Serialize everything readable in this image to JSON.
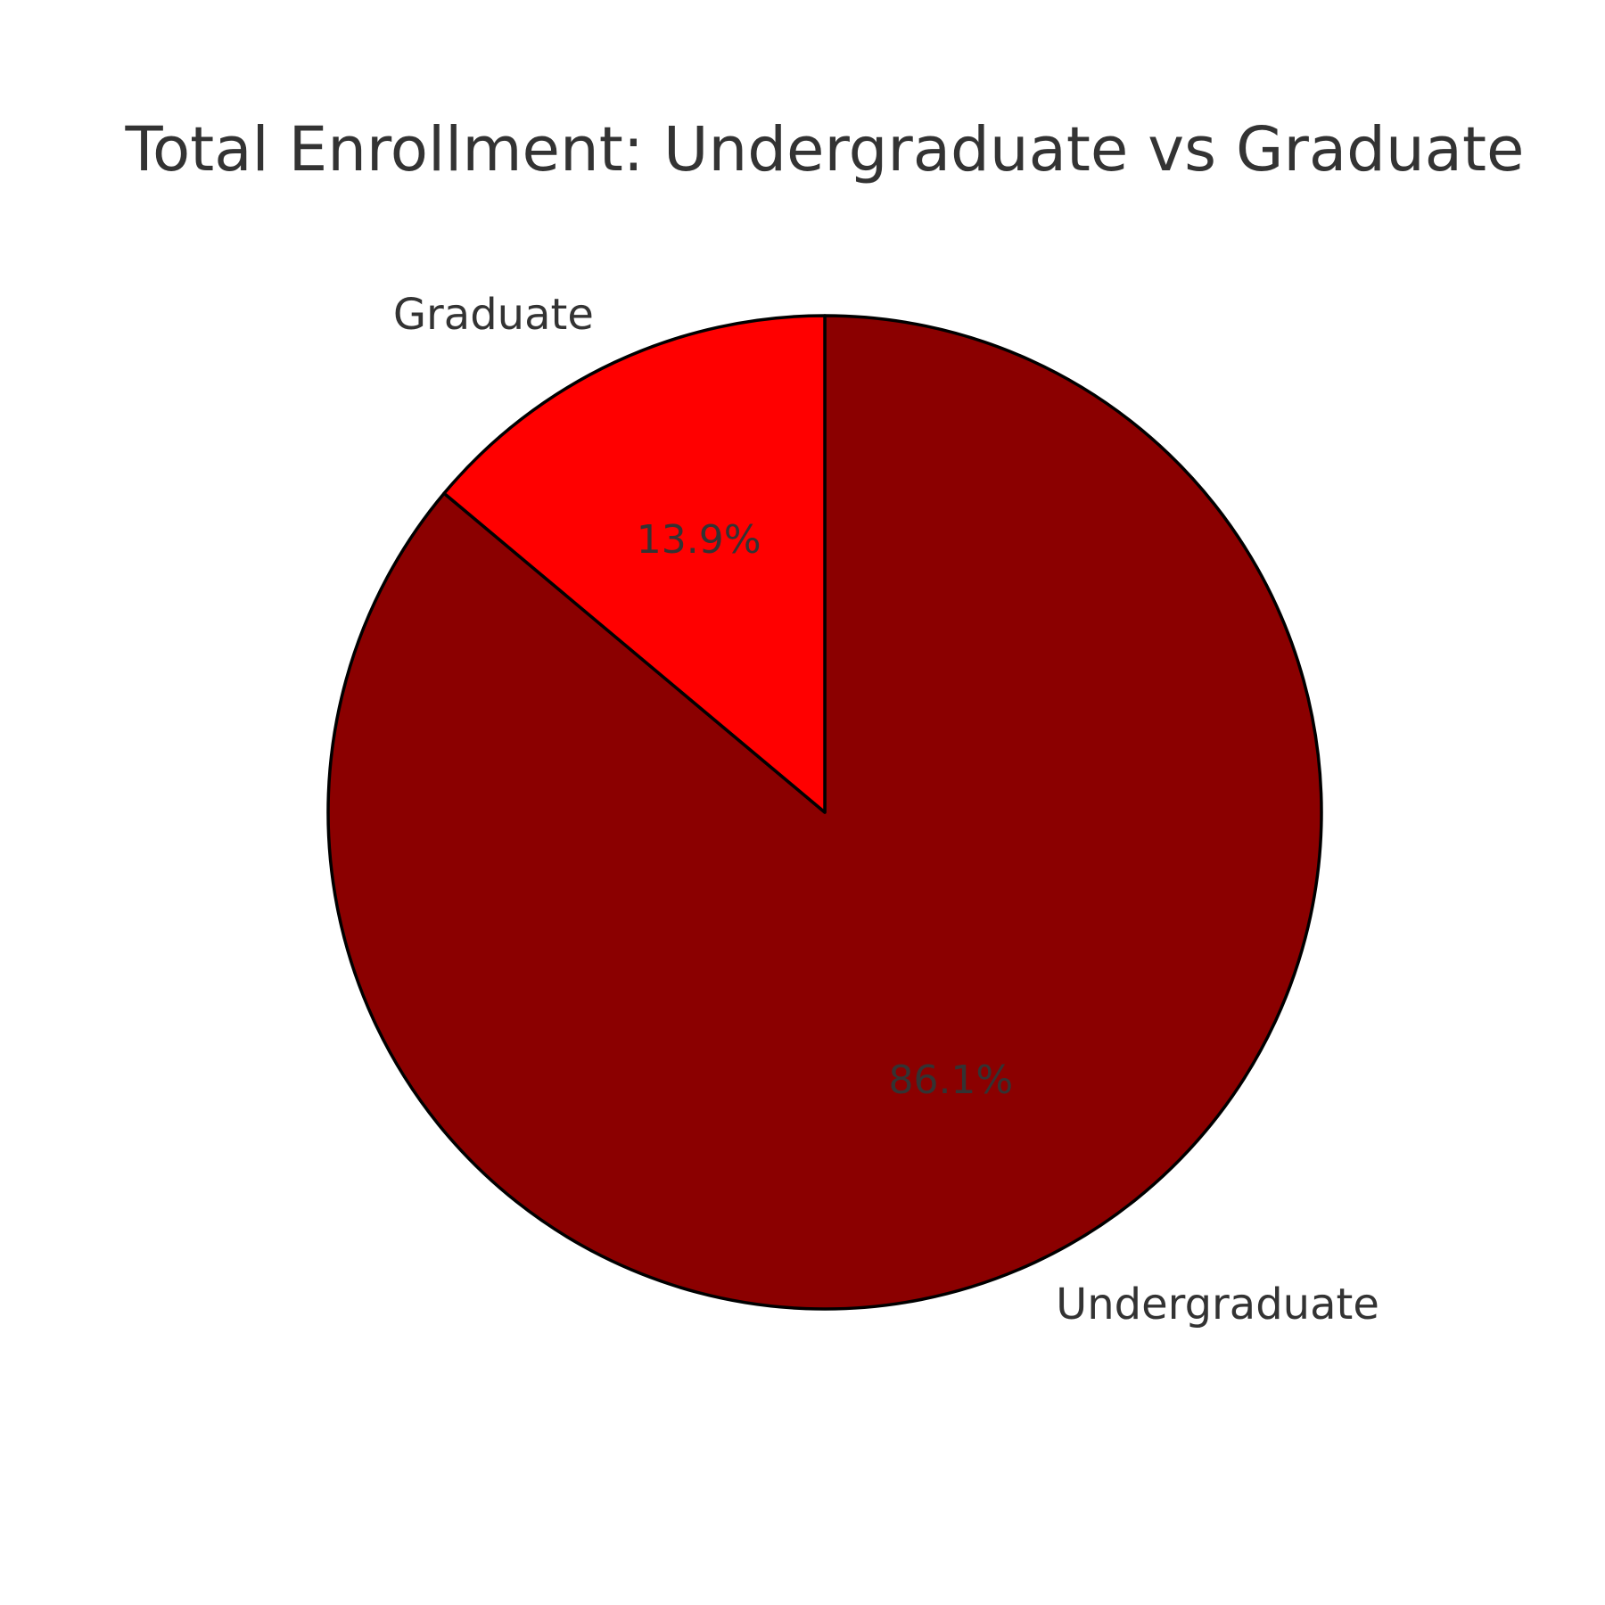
{
  "chart_data": {
    "type": "pie",
    "title": "Total Enrollment: Undergraduate vs Graduate",
    "categories": [
      "Undergraduate",
      "Graduate"
    ],
    "values": [
      86.1,
      13.9
    ],
    "percent_labels": [
      "86.1%",
      "13.9%"
    ],
    "colors": [
      "#8b0000",
      "#ff0000"
    ],
    "edge_color": "#000000",
    "start_angle_deg": 90,
    "direction": "clockwise",
    "legend": "none"
  }
}
